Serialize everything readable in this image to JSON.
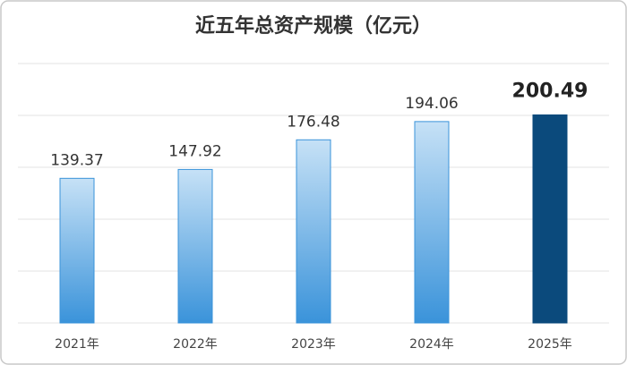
{
  "chart_data": {
    "type": "bar",
    "title": "近五年总资产规模（亿元）",
    "categories": [
      "2021年",
      "2022年",
      "2023年",
      "2024年",
      "2025年"
    ],
    "values": [
      139.37,
      147.92,
      176.48,
      194.06,
      200.49
    ],
    "colors": [
      [
        "#c6e1f6",
        "#3a93da"
      ],
      [
        "#c6e1f6",
        "#3a93da"
      ],
      [
        "#c6e1f6",
        "#3a93da"
      ],
      [
        "#c6e1f6",
        "#3a93da"
      ],
      [
        "#0b4a7c",
        "#0b4a7c"
      ]
    ],
    "ylim": [
      0,
      250
    ],
    "yticks": [
      0,
      50,
      100,
      150,
      200,
      250
    ],
    "grid": true
  }
}
